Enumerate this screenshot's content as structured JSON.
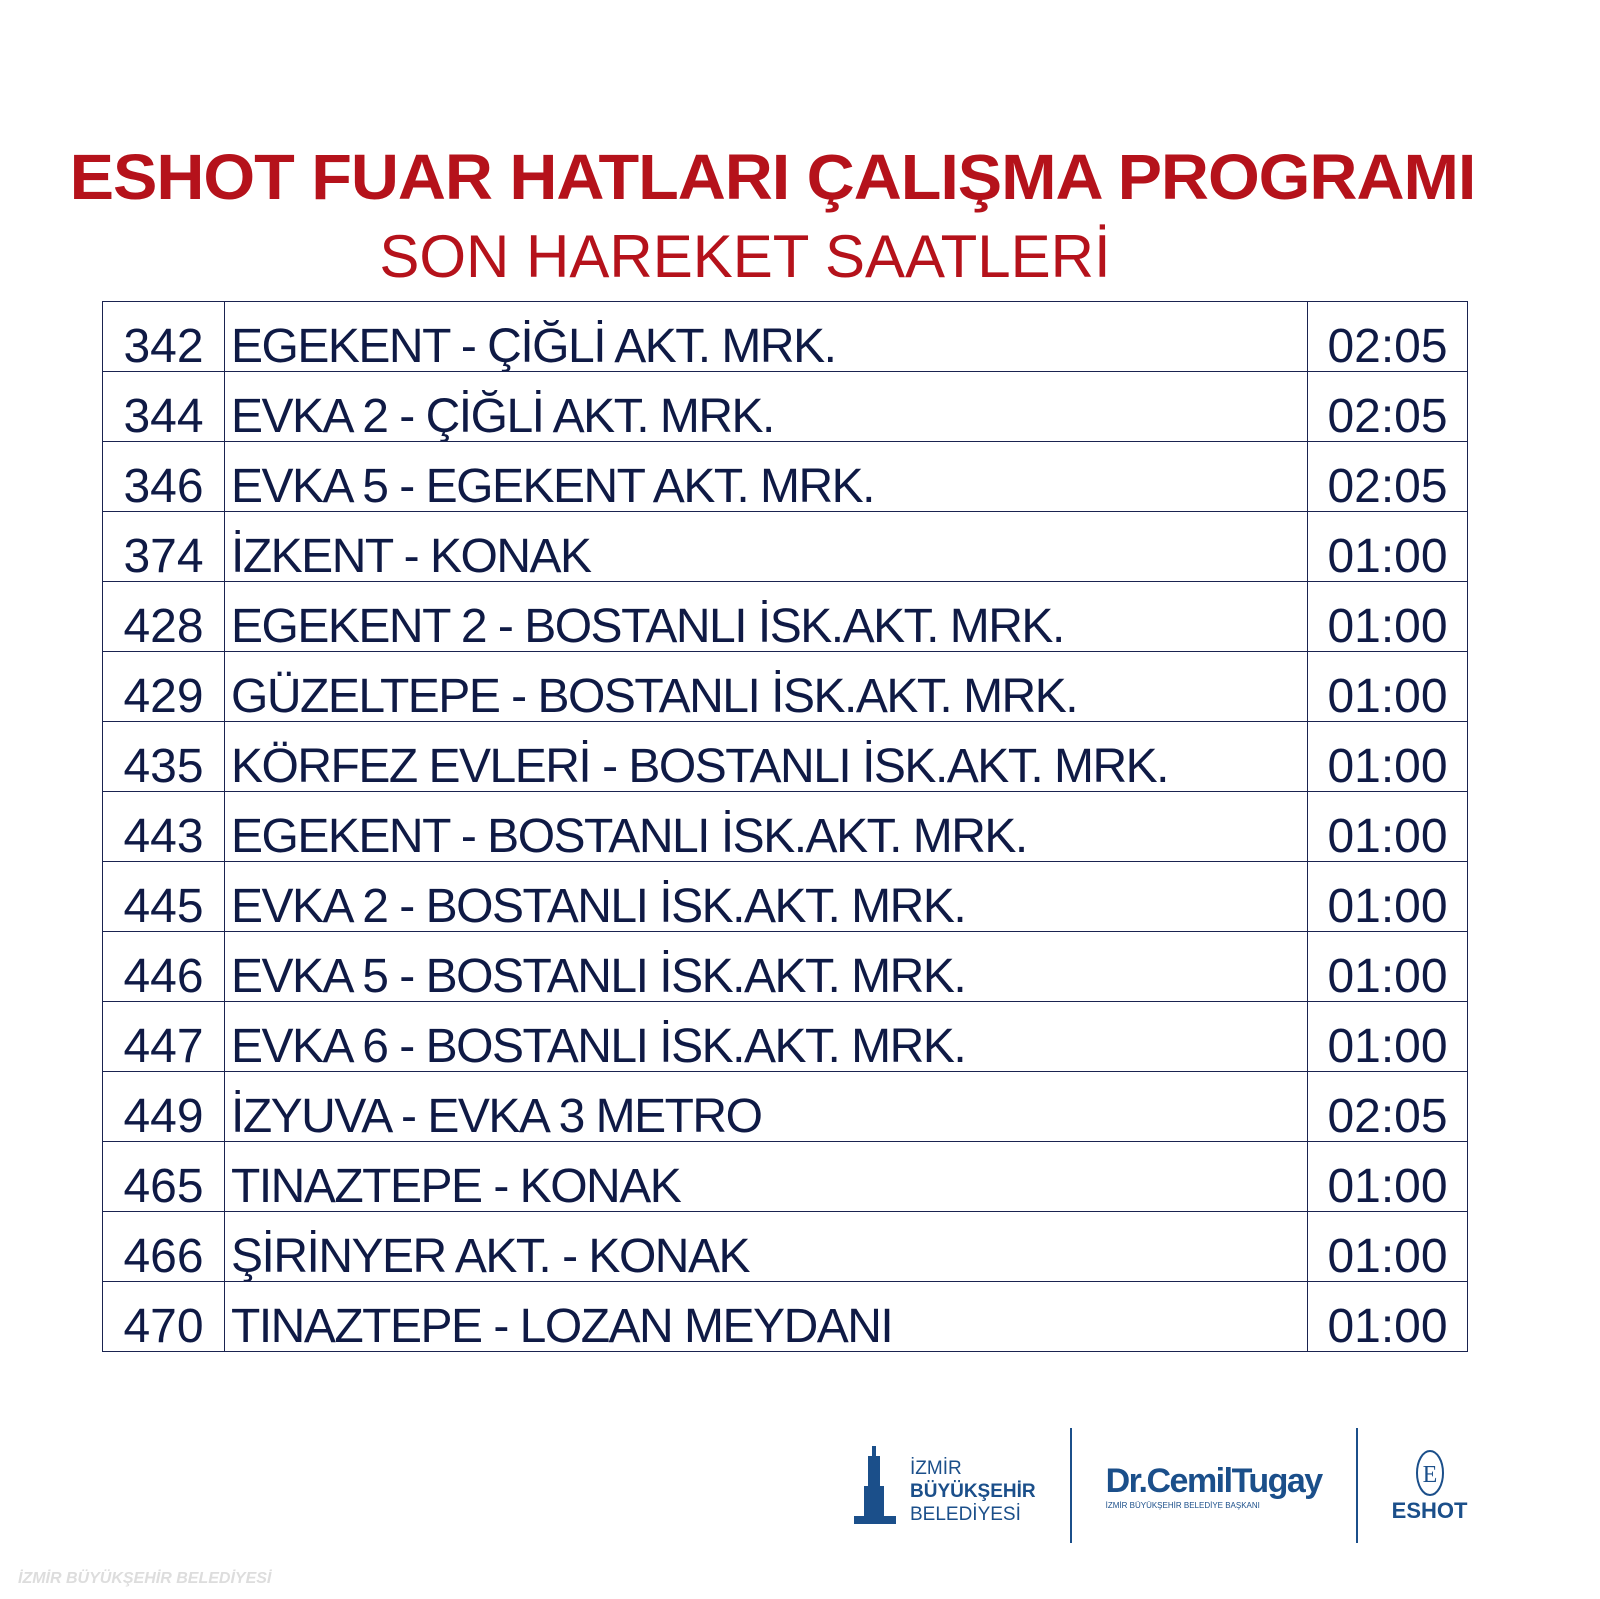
{
  "header": {
    "title": "ESHOT FUAR HATLARI ÇALIŞMA PROGRAMI",
    "subtitle": "SON HAREKET SAATLERİ"
  },
  "rows": [
    {
      "line": "342",
      "route": "EGEKENT - ÇİĞLİ AKT. MRK.",
      "time": "02:05"
    },
    {
      "line": "344",
      "route": "EVKA 2 - ÇİĞLİ AKT. MRK.",
      "time": "02:05"
    },
    {
      "line": "346",
      "route": "EVKA 5 - EGEKENT AKT. MRK.",
      "time": "02:05"
    },
    {
      "line": "374",
      "route": "İZKENT - KONAK",
      "time": "01:00"
    },
    {
      "line": "428",
      "route": "EGEKENT 2  - BOSTANLI İSK.AKT. MRK.",
      "time": "01:00"
    },
    {
      "line": "429",
      "route": "GÜZELTEPE - BOSTANLI İSK.AKT. MRK.",
      "time": "01:00"
    },
    {
      "line": "435",
      "route": "KÖRFEZ EVLERİ - BOSTANLI İSK.AKT. MRK.",
      "time": "01:00"
    },
    {
      "line": "443",
      "route": "EGEKENT - BOSTANLI İSK.AKT. MRK.",
      "time": "01:00"
    },
    {
      "line": "445",
      "route": "EVKA 2 - BOSTANLI İSK.AKT. MRK.",
      "time": "01:00"
    },
    {
      "line": "446",
      "route": "EVKA 5 - BOSTANLI İSK.AKT. MRK.",
      "time": "01:00"
    },
    {
      "line": "447",
      "route": "EVKA 6 - BOSTANLI İSK.AKT. MRK.",
      "time": "01:00"
    },
    {
      "line": "449",
      "route": "İZYUVA  - EVKA 3 METRO",
      "time": "02:05"
    },
    {
      "line": "465",
      "route": "TINAZTEPE - KONAK",
      "time": "01:00"
    },
    {
      "line": "466",
      "route": "ŞİRİNYER AKT. - KONAK",
      "time": "01:00"
    },
    {
      "line": "470",
      "route": "TINAZTEPE - LOZAN MEYDANI",
      "time": "01:00"
    }
  ],
  "footer": {
    "ibb": [
      "İZMİR",
      "BÜYÜKŞEHİR",
      "BELEDİYESİ"
    ],
    "mayor_name": "Dr.CemilTugay",
    "mayor_title": "İZMİR BÜYÜKŞEHİR BELEDİYE BAŞKANI",
    "eshot": "ESHOT",
    "watermark": "İZMİR BÜYÜKŞEHİR BELEDİYESİ"
  },
  "colors": {
    "title": "#b5121b",
    "table_text": "#0f1a45",
    "logo": "#1b4f8a"
  }
}
